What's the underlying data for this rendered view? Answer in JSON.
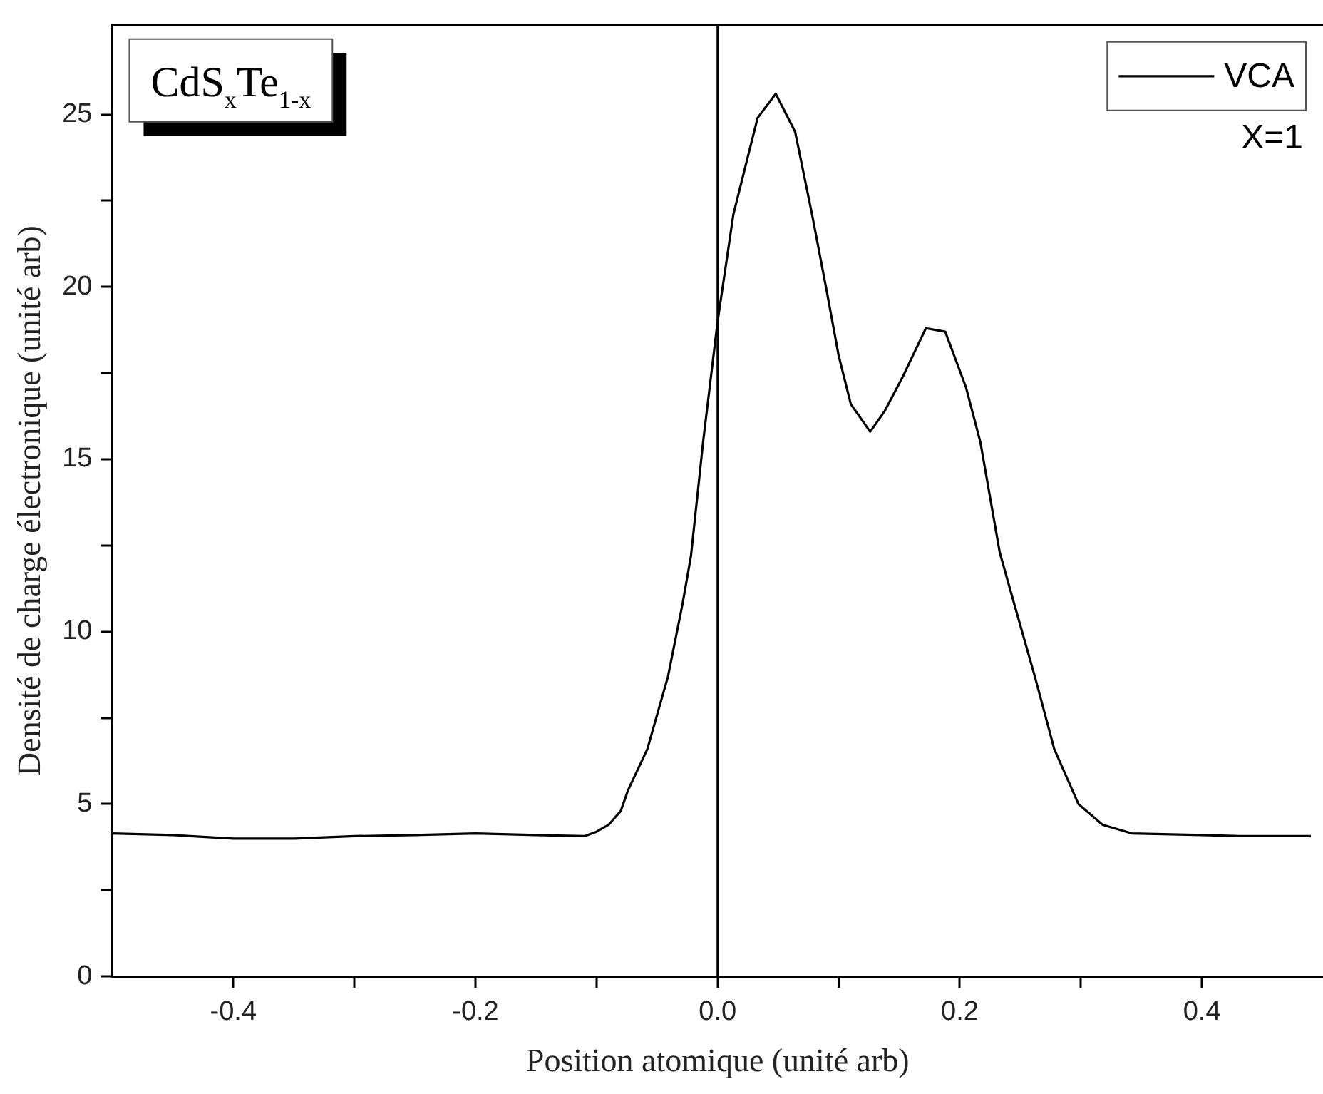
{
  "chart_data": {
    "type": "line",
    "xlabel": "Position atomique (unité arb)",
    "ylabel": "Densité de charge électronique (unité arb)",
    "x": [
      -0.5,
      -0.45,
      -0.4,
      -0.35,
      -0.3,
      -0.25,
      -0.2,
      -0.15,
      -0.11,
      -0.1,
      -0.09,
      -0.08,
      -0.074,
      -0.058,
      -0.041,
      -0.029,
      -0.022,
      -0.012,
      0,
      0.013,
      0.033,
      0.048,
      0.064,
      0.078,
      0.09,
      0.1,
      0.11,
      0.126,
      0.138,
      0.153,
      0.172,
      0.188,
      0.205,
      0.217,
      0.233,
      0.245,
      0.262,
      0.278,
      0.298,
      0.318,
      0.342,
      0.4,
      0.431,
      0.49
    ],
    "series": [
      {
        "name": "VCA",
        "color": "#000000",
        "values": [
          4.15,
          4.1,
          4.0,
          4.0,
          4.07,
          4.1,
          4.15,
          4.1,
          4.07,
          4.2,
          4.4,
          4.8,
          5.4,
          6.6,
          8.7,
          10.8,
          12.2,
          15.5,
          19.0,
          22.1,
          24.9,
          25.6,
          24.5,
          22.1,
          19.9,
          18.0,
          16.6,
          15.8,
          16.4,
          17.4,
          18.8,
          18.7,
          17.1,
          15.5,
          12.3,
          10.8,
          8.7,
          6.6,
          5.0,
          4.4,
          4.15,
          4.1,
          4.07,
          4.07
        ]
      }
    ],
    "xlim": [
      -0.5,
      0.5
    ],
    "ylim": [
      0,
      27.6
    ],
    "xticks": [
      -0.4,
      {
        "value": -0.3,
        "label": null
      },
      -0.2,
      {
        "value": -0.1,
        "label": null
      },
      {
        "value": 0,
        "label": "0.0"
      },
      {
        "value": 0.1,
        "label": null
      },
      0.2,
      {
        "value": 0.3,
        "label": null
      },
      0.4
    ],
    "yticks": [
      0,
      {
        "value": 2.5,
        "label": null
      },
      5,
      {
        "value": 7.5,
        "label": null
      },
      10,
      {
        "value": 12.5,
        "label": null
      },
      15,
      {
        "value": 17.5,
        "label": null
      },
      20,
      {
        "value": 22.5,
        "label": null
      },
      25
    ],
    "ref_lines": [
      {
        "axis": "x",
        "value": 0,
        "color": "#000000"
      }
    ],
    "annotations": [
      "CdS$_{x}$Te$_{1-x}$",
      "X=1"
    ],
    "legend": "top right",
    "marker": "none",
    "line_style": "solid",
    "grid": false
  }
}
